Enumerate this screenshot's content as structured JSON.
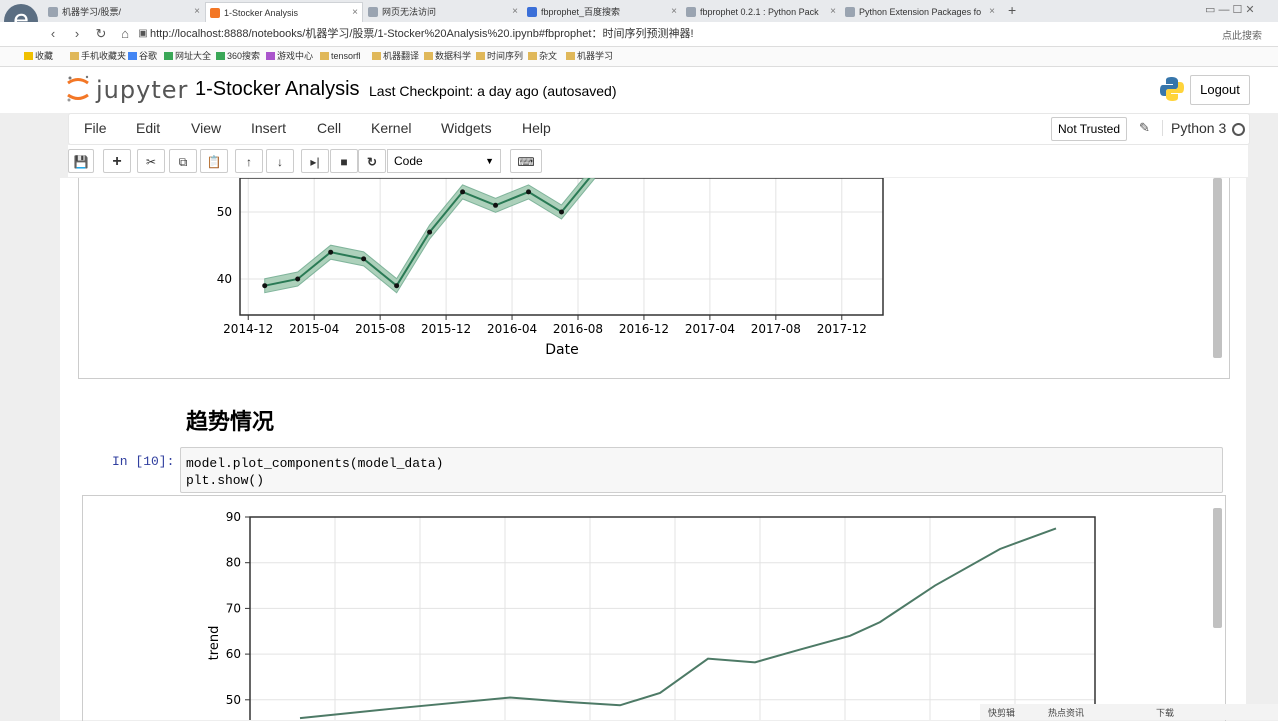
{
  "browser": {
    "tabs": [
      {
        "label": "机器学习/股票/"
      },
      {
        "label": "1-Stocker Analysis"
      },
      {
        "label": "网页无法访问"
      },
      {
        "label": "fbprophet_百度搜索"
      },
      {
        "label": "fbprophet 0.2.1 : Python Pack"
      },
      {
        "label": "Python Extension Packages fo"
      }
    ],
    "url": "http://localhost:8888/notebooks/机器学习/股票/1-Stocker%20Analysis%20.ipynb#fbprophet：时间序列预测神器!",
    "bookmarks": [
      "收藏",
      "手机收藏夹",
      "谷歌",
      "网址大全",
      "360搜索",
      "游戏中心",
      "tensorfl",
      "机器翻译",
      "数据科学",
      "时间序列",
      "杂文",
      "机器学习"
    ],
    "search_hint": "点此搜索"
  },
  "jupyter": {
    "logo_text": "jupyter",
    "notebook_name": "1-Stocker Analysis",
    "checkpoint": "Last Checkpoint: a day ago (autosaved)",
    "logout_label": "Logout",
    "menu": [
      "File",
      "Edit",
      "View",
      "Insert",
      "Cell",
      "Kernel",
      "Widgets",
      "Help"
    ],
    "trusted_label": "Not Trusted",
    "kernel_name": "Python 3",
    "cell_type": "Code"
  },
  "cells": {
    "markdown_heading": "趋势情况",
    "prompt": "In [10]:",
    "code_lines": [
      "model.plot_components(model_data)",
      "plt.show()"
    ]
  },
  "status_bar": [
    "快剪辑",
    "热点资讯",
    "下载"
  ],
  "chart_data": [
    {
      "type": "line",
      "xlabel": "Date",
      "ylabel": "",
      "x_ticks": [
        "2014-12",
        "2015-04",
        "2015-08",
        "2015-12",
        "2016-04",
        "2016-08",
        "2016-12",
        "2017-04",
        "2017-08",
        "2017-12"
      ],
      "y_ticks": [
        40,
        50
      ],
      "grid": true,
      "series": [
        {
          "values_x": [
            "2015-01",
            "2015-03",
            "2015-05",
            "2015-07",
            "2015-09",
            "2015-11",
            "2016-01",
            "2016-03",
            "2016-05",
            "2016-07",
            "2016-09"
          ],
          "values": [
            39,
            40,
            44,
            43,
            39,
            47,
            53,
            51,
            53,
            50,
            56
          ]
        }
      ]
    },
    {
      "type": "line",
      "xlabel": "",
      "ylabel": "trend",
      "y_ticks": [
        50,
        60,
        70,
        80,
        90
      ],
      "grid": true,
      "series": [
        {
          "values": [
            46,
            48,
            50.5,
            49.5,
            48.8,
            51.5,
            59,
            58.2,
            61,
            64,
            67,
            75,
            83,
            87.5
          ]
        }
      ]
    }
  ]
}
